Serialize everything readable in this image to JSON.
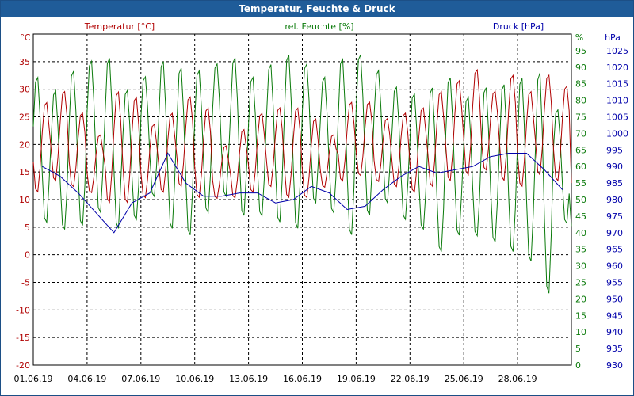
{
  "window": {
    "title": "Temperatur, Feuchte & Druck"
  },
  "colors": {
    "temperature": "#b00000",
    "humidity": "#0a7a0a",
    "pressure": "#0000aa",
    "grid": "#000000",
    "title_bar": "#1f5c99"
  },
  "chart_data": {
    "type": "line",
    "title": "Temperatur, Feuchte & Druck",
    "grid": true,
    "x_ticks": [
      "01.06.19",
      "04.06.19",
      "07.06.19",
      "10.06.19",
      "13.06.19",
      "16.06.19",
      "19.06.19",
      "22.06.19",
      "25.06.19",
      "28.06.19"
    ],
    "x_range": [
      "01.06.19",
      "01.07.19"
    ],
    "axes": {
      "temperature": {
        "label": "Temperatur [°C]",
        "unit": "°C",
        "range": [
          -20,
          40
        ],
        "ticks": [
          -20,
          -15,
          -10,
          -5,
          0,
          5,
          10,
          15,
          20,
          25,
          30,
          35
        ]
      },
      "humidity": {
        "label": "rel. Feuchte [%]",
        "unit": "%",
        "range": [
          0,
          100
        ],
        "ticks": [
          0,
          5,
          10,
          15,
          20,
          25,
          30,
          35,
          40,
          45,
          50,
          55,
          60,
          65,
          70,
          75,
          80,
          85,
          90,
          95
        ]
      },
      "pressure": {
        "label": "Druck [hPa]",
        "unit": "hPa",
        "range": [
          930,
          1030
        ],
        "ticks": [
          930,
          935,
          940,
          945,
          950,
          955,
          960,
          965,
          970,
          975,
          980,
          985,
          990,
          995,
          1000,
          1005,
          1010,
          1015,
          1020,
          1025
        ]
      }
    },
    "series": [
      {
        "name": "Temperatur [°C]",
        "axis": "temperature",
        "day_min": [
          11,
          13,
          12,
          11,
          9,
          9,
          10,
          11,
          12,
          10,
          10,
          10,
          11,
          12,
          10,
          10,
          12,
          13,
          14,
          13,
          12,
          11,
          12,
          13,
          14,
          15,
          13,
          12,
          14,
          13
        ],
        "day_max": [
          28,
          30,
          26,
          22,
          30,
          29,
          24,
          26,
          29,
          27,
          20,
          23,
          26,
          27,
          27,
          25,
          22,
          28,
          28,
          25,
          26,
          27,
          30,
          32,
          34,
          30,
          33,
          30,
          33,
          31
        ]
      },
      {
        "name": "rel. Feuchte [%]",
        "axis": "humidity",
        "day_min": [
          42,
          40,
          41,
          45,
          40,
          43,
          50,
          40,
          38,
          45,
          50,
          44,
          44,
          42,
          40,
          48,
          45,
          38,
          44,
          48,
          43,
          40,
          33,
          38,
          38,
          36,
          33,
          30,
          20,
          42
        ],
        "day_max": [
          88,
          84,
          90,
          93,
          94,
          84,
          88,
          93,
          91,
          90,
          92,
          94,
          88,
          92,
          95,
          92,
          88,
          94,
          95,
          90,
          85,
          83,
          85,
          88,
          82,
          85,
          86,
          88,
          90,
          78
        ]
      },
      {
        "name": "Druck [hPa]",
        "axis": "pressure",
        "day_values": [
          990,
          987,
          982,
          976,
          970,
          979,
          982,
          994,
          985,
          981,
          981,
          982,
          982,
          979,
          980,
          984,
          982,
          977,
          978,
          983,
          987,
          990,
          988,
          989,
          990,
          993,
          994,
          994,
          989,
          983
        ]
      }
    ]
  }
}
